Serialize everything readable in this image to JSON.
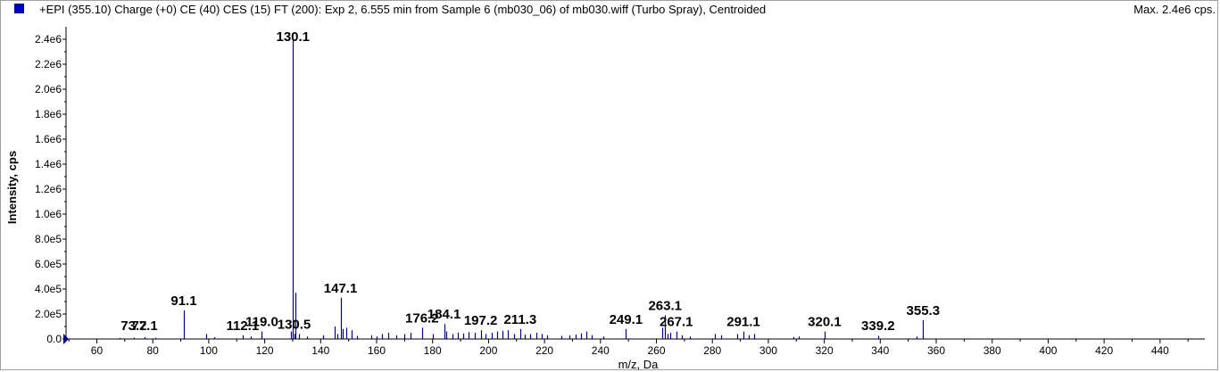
{
  "header": {
    "title": "+EPI (355.10) Charge (+0) CE (40) CES (15) FT (200): Exp 2, 6.555 min from Sample 6 (mb030_06) of mb030.wiff (Turbo Spray), Centroided",
    "max_label": "Max. 2.4e6 cps.",
    "swatch_color": "#0000c0"
  },
  "chart_data": {
    "type": "bar",
    "xlabel": "m/z, Da",
    "ylabel": "Intensity, cps",
    "xlim": [
      49,
      456
    ],
    "ylim": [
      0,
      2500000
    ],
    "x_ticks": [
      60,
      80,
      100,
      120,
      140,
      160,
      180,
      200,
      220,
      240,
      260,
      280,
      300,
      320,
      340,
      360,
      380,
      400,
      420,
      440
    ],
    "y_ticks": [
      {
        "value": 0,
        "label": "0.0"
      },
      {
        "value": 200000,
        "label": "2.0e5"
      },
      {
        "value": 400000,
        "label": "4.0e5"
      },
      {
        "value": 600000,
        "label": "6.0e5"
      },
      {
        "value": 800000,
        "label": "8.0e5"
      },
      {
        "value": 1000000,
        "label": "1.0e6"
      },
      {
        "value": 1200000,
        "label": "1.2e6"
      },
      {
        "value": 1400000,
        "label": "1.4e6"
      },
      {
        "value": 1600000,
        "label": "1.6e6"
      },
      {
        "value": 1800000,
        "label": "1.8e6"
      },
      {
        "value": 2000000,
        "label": "2.0e6"
      },
      {
        "value": 2200000,
        "label": "2.2e6"
      },
      {
        "value": 2400000,
        "label": "2.4e6"
      }
    ],
    "bar_color": "#00008b",
    "grid": false,
    "labeled_peaks": [
      {
        "mz": 73.2,
        "label": "73.2",
        "intensity": 10000
      },
      {
        "mz": 77.1,
        "label": "77.1",
        "intensity": 15000
      },
      {
        "mz": 91.1,
        "label": "91.1",
        "intensity": 230000
      },
      {
        "mz": 112.1,
        "label": "112.1",
        "intensity": 30000
      },
      {
        "mz": 119.0,
        "label": "119.0",
        "intensity": 60000
      },
      {
        "mz": 130.1,
        "label": "130.1",
        "intensity": 2400000
      },
      {
        "mz": 130.5,
        "label": "130.5",
        "intensity": 40000
      },
      {
        "mz": 147.1,
        "label": "147.1",
        "intensity": 330000
      },
      {
        "mz": 176.2,
        "label": "176.2",
        "intensity": 90000
      },
      {
        "mz": 184.1,
        "label": "184.1",
        "intensity": 120000
      },
      {
        "mz": 197.2,
        "label": "197.2",
        "intensity": 70000
      },
      {
        "mz": 211.3,
        "label": "211.3",
        "intensity": 80000
      },
      {
        "mz": 249.1,
        "label": "249.1",
        "intensity": 80000
      },
      {
        "mz": 263.1,
        "label": "263.1",
        "intensity": 190000
      },
      {
        "mz": 267.1,
        "label": "267.1",
        "intensity": 60000
      },
      {
        "mz": 291.1,
        "label": "291.1",
        "intensity": 60000
      },
      {
        "mz": 320.1,
        "label": "320.1",
        "intensity": 60000
      },
      {
        "mz": 339.2,
        "label": "339.2",
        "intensity": 25000
      },
      {
        "mz": 355.3,
        "label": "355.3",
        "intensity": 150000
      }
    ],
    "minor_peaks": [
      {
        "mz": 68.0,
        "intensity": 8000
      },
      {
        "mz": 81.0,
        "intensity": 10000
      },
      {
        "mz": 99.0,
        "intensity": 40000
      },
      {
        "mz": 102.0,
        "intensity": 15000
      },
      {
        "mz": 115.0,
        "intensity": 20000
      },
      {
        "mz": 129.5,
        "intensity": 60000
      },
      {
        "mz": 131.1,
        "intensity": 370000
      },
      {
        "mz": 132.1,
        "intensity": 40000
      },
      {
        "mz": 135.0,
        "intensity": 20000
      },
      {
        "mz": 141.0,
        "intensity": 30000
      },
      {
        "mz": 145.0,
        "intensity": 100000
      },
      {
        "mz": 146.0,
        "intensity": 40000
      },
      {
        "mz": 148.0,
        "intensity": 80000
      },
      {
        "mz": 149.0,
        "intensity": 90000
      },
      {
        "mz": 151.0,
        "intensity": 70000
      },
      {
        "mz": 153.0,
        "intensity": 25000
      },
      {
        "mz": 158.0,
        "intensity": 30000
      },
      {
        "mz": 160.0,
        "intensity": 20000
      },
      {
        "mz": 162.0,
        "intensity": 40000
      },
      {
        "mz": 164.0,
        "intensity": 50000
      },
      {
        "mz": 167.0,
        "intensity": 30000
      },
      {
        "mz": 170.0,
        "intensity": 40000
      },
      {
        "mz": 172.0,
        "intensity": 50000
      },
      {
        "mz": 180.0,
        "intensity": 40000
      },
      {
        "mz": 185.0,
        "intensity": 60000
      },
      {
        "mz": 187.0,
        "intensity": 40000
      },
      {
        "mz": 189.0,
        "intensity": 50000
      },
      {
        "mz": 191.0,
        "intensity": 45000
      },
      {
        "mz": 193.0,
        "intensity": 55000
      },
      {
        "mz": 195.0,
        "intensity": 50000
      },
      {
        "mz": 199.0,
        "intensity": 40000
      },
      {
        "mz": 201.0,
        "intensity": 50000
      },
      {
        "mz": 203.0,
        "intensity": 60000
      },
      {
        "mz": 205.0,
        "intensity": 65000
      },
      {
        "mz": 207.0,
        "intensity": 70000
      },
      {
        "mz": 209.0,
        "intensity": 40000
      },
      {
        "mz": 213.0,
        "intensity": 35000
      },
      {
        "mz": 215.0,
        "intensity": 40000
      },
      {
        "mz": 217.0,
        "intensity": 50000
      },
      {
        "mz": 219.0,
        "intensity": 40000
      },
      {
        "mz": 221.0,
        "intensity": 30000
      },
      {
        "mz": 226.0,
        "intensity": 25000
      },
      {
        "mz": 229.0,
        "intensity": 30000
      },
      {
        "mz": 231.0,
        "intensity": 35000
      },
      {
        "mz": 233.0,
        "intensity": 45000
      },
      {
        "mz": 235.0,
        "intensity": 60000
      },
      {
        "mz": 237.0,
        "intensity": 30000
      },
      {
        "mz": 241.0,
        "intensity": 20000
      },
      {
        "mz": 262.0,
        "intensity": 90000
      },
      {
        "mz": 264.0,
        "intensity": 40000
      },
      {
        "mz": 265.0,
        "intensity": 50000
      },
      {
        "mz": 269.0,
        "intensity": 30000
      },
      {
        "mz": 272.0,
        "intensity": 20000
      },
      {
        "mz": 281.0,
        "intensity": 40000
      },
      {
        "mz": 283.0,
        "intensity": 30000
      },
      {
        "mz": 289.0,
        "intensity": 40000
      },
      {
        "mz": 293.0,
        "intensity": 30000
      },
      {
        "mz": 295.0,
        "intensity": 40000
      },
      {
        "mz": 309.0,
        "intensity": 15000
      },
      {
        "mz": 311.0,
        "intensity": 20000
      },
      {
        "mz": 353.0,
        "intensity": 20000
      }
    ]
  }
}
